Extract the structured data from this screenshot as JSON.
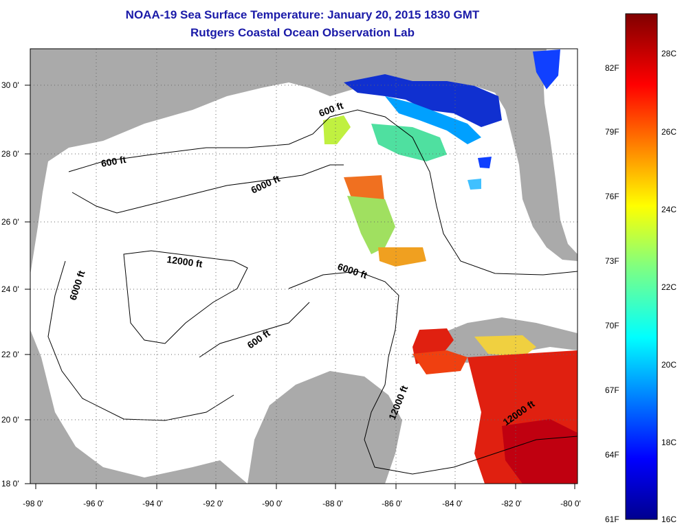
{
  "title": "NOAA-19 Sea Surface Temperature:  January 20, 2015 1830 GMT",
  "subtitle": "Rutgers Coastal Ocean Observation Lab",
  "map": {
    "x_ticks": [
      "-98 0'",
      "-96 0'",
      "-94 0'",
      "-92 0'",
      "-90 0'",
      "-88 0'",
      "-86 0'",
      "-84 0'",
      "-82 0'",
      "-80 0'"
    ],
    "y_ticks": [
      "30 0'",
      "28 0'",
      "26 0'",
      "24 0'",
      "22 0'",
      "20 0'",
      "18 0'"
    ],
    "contour_labels": [
      "600 ft",
      "600 ft",
      "6000 ft",
      "12000 ft",
      "6000 ft",
      "6000 ft",
      "600 ft",
      "12000 ft",
      "12000 ft"
    ]
  },
  "colorbar": {
    "fahrenheit": [
      "82F",
      "79F",
      "76F",
      "73F",
      "70F",
      "67F",
      "64F",
      "61F"
    ],
    "celsius": [
      "28C",
      "26C",
      "24C",
      "22C",
      "20C",
      "18C",
      "16C"
    ]
  },
  "colors": {
    "title": "#1a1aa8",
    "land": "#aaaaaa",
    "ocean": "#ffffff"
  }
}
